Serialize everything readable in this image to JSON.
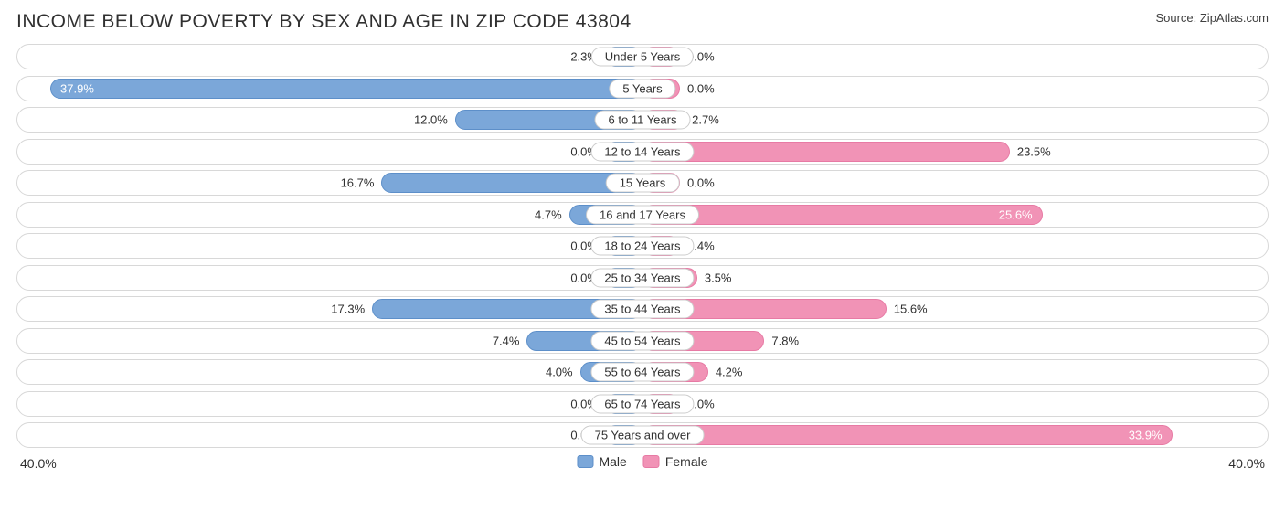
{
  "title": "INCOME BELOW POVERTY BY SEX AND AGE IN ZIP CODE 43804",
  "source": "Source: ZipAtlas.com",
  "axis_max": 40.0,
  "axis_label": "40.0%",
  "min_bar_pct": 6.0,
  "colors": {
    "male_fill": "#7ba7d9",
    "male_border": "#5d8fc9",
    "female_fill": "#f193b6",
    "female_border": "#e77aa4",
    "row_border": "#d8d8d8",
    "text": "#303030",
    "background": "#ffffff"
  },
  "legend": {
    "male": "Male",
    "female": "Female"
  },
  "rows": [
    {
      "age": "Under 5 Years",
      "male": 2.3,
      "female": 0.0
    },
    {
      "age": "5 Years",
      "male": 37.9,
      "female": 0.0
    },
    {
      "age": "6 to 11 Years",
      "male": 12.0,
      "female": 2.7
    },
    {
      "age": "12 to 14 Years",
      "male": 0.0,
      "female": 23.5
    },
    {
      "age": "15 Years",
      "male": 16.7,
      "female": 0.0
    },
    {
      "age": "16 and 17 Years",
      "male": 4.7,
      "female": 25.6
    },
    {
      "age": "18 to 24 Years",
      "male": 0.0,
      "female": 1.4
    },
    {
      "age": "25 to 34 Years",
      "male": 0.0,
      "female": 3.5
    },
    {
      "age": "35 to 44 Years",
      "male": 17.3,
      "female": 15.6
    },
    {
      "age": "45 to 54 Years",
      "male": 7.4,
      "female": 7.8
    },
    {
      "age": "55 to 64 Years",
      "male": 4.0,
      "female": 4.2
    },
    {
      "age": "65 to 74 Years",
      "male": 0.0,
      "female": 0.0
    },
    {
      "age": "75 Years and over",
      "male": 0.0,
      "female": 33.9
    }
  ],
  "label_inside_threshold": 25.0
}
